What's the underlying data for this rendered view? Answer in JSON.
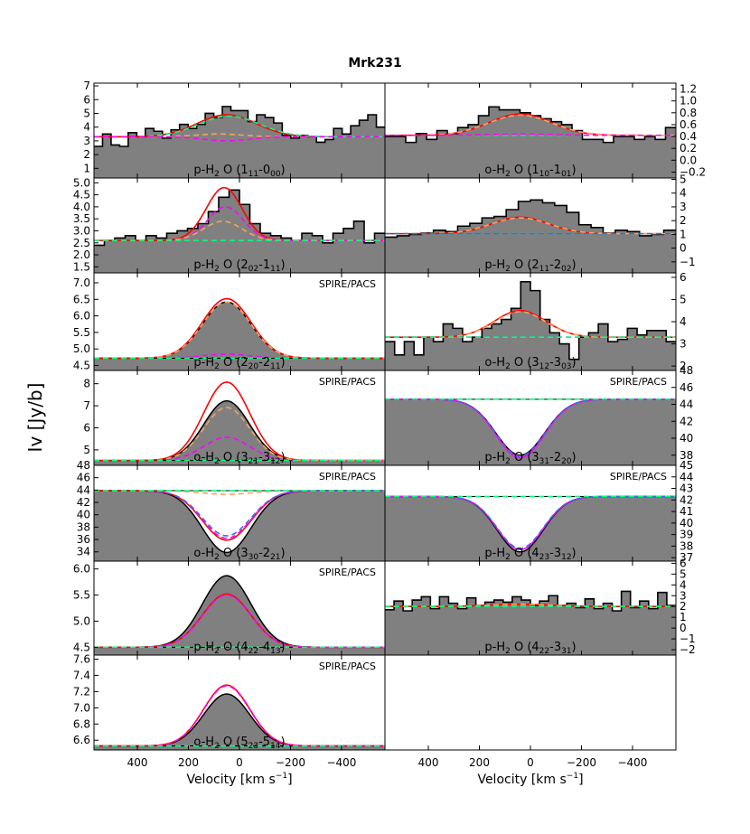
{
  "figure": {
    "title": "Mrk231",
    "ylabel": "Iv [Jy/b]",
    "xlabel": "Velocity [km s$^{-1}$]",
    "xlabel_plain": "Velocity [km s",
    "xlabel_sup": "−1",
    "xlabel_close": "]",
    "xlim": [
      570,
      -570
    ],
    "xticks": [
      400,
      200,
      0,
      -200,
      -400
    ],
    "xtick_labels": [
      "400",
      "200",
      "0",
      "−200",
      "−400"
    ]
  },
  "colors": {
    "fill": "#808080",
    "total": "#ff0000",
    "magenta": "#ff00ff",
    "orange": "#f4a460",
    "cyan": "#00ff7f",
    "blue": "#4169e1",
    "black": "#000000"
  },
  "chart_data": [
    {
      "type": "histogram-line",
      "label": "p-H$_2$O (1$_{11}$-0$_{00}$)",
      "label_parts": [
        "p-H",
        "2",
        " O (1",
        "11",
        "-0",
        "00",
        ")"
      ],
      "axis_side": "left",
      "ylim": [
        0.3,
        7.2
      ],
      "yticks": [
        1,
        2,
        3,
        4,
        5,
        6,
        7
      ],
      "observed": [
        2.6,
        3.5,
        2.7,
        2.6,
        3.6,
        3.3,
        3.9,
        3.7,
        3.2,
        3.8,
        4.2,
        3.9,
        4.2,
        5.0,
        4.7,
        5.5,
        5.2,
        5.2,
        4.4,
        4.9,
        4.7,
        4.3,
        3.4,
        3.2,
        3.4,
        3.3,
        2.9,
        3.1,
        3.9,
        3.5,
        4.1,
        4.5,
        4.9,
        4.0
      ],
      "continuum": 3.3,
      "components": [
        {
          "color": "total",
          "dash": false,
          "amp": 1.6,
          "center": 50,
          "sigma": 115
        },
        {
          "color": "cyan",
          "dash": true,
          "amp": 1.5,
          "center": 40,
          "sigma": 120
        },
        {
          "color": "orange",
          "dash": true,
          "amp": 0.2,
          "center": 80,
          "sigma": 90
        },
        {
          "color": "magenta",
          "dash": true,
          "amp": -0.3,
          "center": 50,
          "sigma": 90
        }
      ]
    },
    {
      "type": "histogram-line",
      "label": "o-H$_2$O (1$_{10}$-1$_{01}$)",
      "label_parts": [
        "o-H",
        "2",
        " O (1",
        "10",
        "-1",
        "01",
        ")"
      ],
      "axis_side": "right",
      "ylim": [
        -0.3,
        1.3
      ],
      "yticks": [
        -0.2,
        0.0,
        0.2,
        0.4,
        0.6,
        0.8,
        1.0,
        1.2
      ],
      "ytick_labels": [
        "−0.2",
        "0.0",
        "0.2",
        "0.4",
        "0.6",
        "0.8",
        "1.0",
        "1.2"
      ],
      "observed": [
        0.4,
        0.4,
        0.3,
        0.45,
        0.35,
        0.5,
        0.45,
        0.55,
        0.6,
        0.75,
        0.9,
        0.85,
        0.85,
        0.8,
        0.75,
        0.7,
        0.65,
        0.6,
        0.5,
        0.35,
        0.35,
        0.3,
        0.4,
        0.4,
        0.35,
        0.4,
        0.35,
        0.55
      ],
      "continuum": 0.42,
      "components": [
        {
          "color": "total",
          "dash": false,
          "amp": 0.36,
          "center": 40,
          "sigma": 120
        },
        {
          "color": "orange",
          "dash": true,
          "amp": 0.34,
          "center": 40,
          "sigma": 125
        },
        {
          "color": "cyan",
          "dash": true,
          "amp": 0.0,
          "center": 0,
          "sigma": 100
        },
        {
          "color": "magenta",
          "dash": true,
          "amp": 0.02,
          "center": 40,
          "sigma": 120
        }
      ]
    },
    {
      "type": "histogram-line",
      "label": "p-H$_2$O (2$_{02}$-1$_{11}$)",
      "label_parts": [
        "p-H",
        "2",
        " O (2",
        "02",
        "-1",
        "11",
        ")"
      ],
      "axis_side": "left",
      "ylim": [
        1.25,
        5.2
      ],
      "yticks": [
        1.5,
        2.0,
        2.5,
        3.0,
        3.5,
        4.0,
        4.5,
        5.0
      ],
      "ytick_labels": [
        "1.5",
        "2.0",
        "2.5",
        "3.0",
        "3.5",
        "4.0",
        "4.5",
        "5.0"
      ],
      "observed": [
        2.4,
        2.6,
        2.7,
        2.8,
        2.6,
        2.8,
        2.7,
        2.9,
        3.0,
        3.1,
        3.3,
        3.8,
        4.4,
        4.7,
        4.1,
        3.3,
        2.9,
        2.8,
        2.7,
        2.6,
        2.9,
        2.8,
        2.5,
        2.9,
        3.1,
        3.4,
        2.5,
        2.9
      ],
      "continuum": 2.6,
      "components": [
        {
          "color": "total",
          "dash": false,
          "amp": 2.2,
          "center": 60,
          "sigma": 70
        },
        {
          "color": "magenta",
          "dash": true,
          "amp": 1.4,
          "center": 55,
          "sigma": 70
        },
        {
          "color": "orange",
          "dash": true,
          "amp": 0.8,
          "center": 65,
          "sigma": 75
        },
        {
          "color": "cyan",
          "dash": true,
          "amp": 0.0,
          "center": 0,
          "sigma": 100
        }
      ]
    },
    {
      "type": "histogram-line",
      "label": "p-H$_2$O (2$_{11}$-2$_{02}$)",
      "label_parts": [
        "p-H",
        "2",
        " O (2",
        "11",
        "-2",
        "02",
        ")"
      ],
      "axis_side": "right",
      "ylim": [
        -1.8,
        5.1
      ],
      "yticks": [
        -1,
        0,
        1,
        2,
        3,
        4,
        5
      ],
      "ytick_labels": [
        "−1",
        "0",
        "1",
        "2",
        "3",
        "4",
        "5"
      ],
      "observed": [
        0.8,
        0.9,
        1.0,
        1.1,
        1.3,
        1.2,
        1.6,
        1.8,
        2.2,
        2.3,
        2.8,
        3.4,
        3.5,
        3.3,
        3.1,
        2.6,
        1.7,
        1.5,
        1.1,
        1.3,
        1.2,
        0.9,
        1.0,
        1.3
      ],
      "continuum": 1.05,
      "components": [
        {
          "color": "total",
          "dash": false,
          "amp": 1.2,
          "center": 40,
          "sigma": 110
        },
        {
          "color": "orange",
          "dash": true,
          "amp": 1.15,
          "center": 40,
          "sigma": 115
        },
        {
          "color": "cyan",
          "dash": true,
          "amp": 0.0,
          "center": 0,
          "sigma": 100
        },
        {
          "color": "blue",
          "dash": true,
          "amp": 0.0,
          "center": 0,
          "sigma": 100
        }
      ]
    },
    {
      "type": "gaussian-model",
      "label": "p-H$_2$O (2$_{20}$-2$_{11}$)",
      "label_parts": [
        "p-H",
        "2",
        " O (2",
        "20",
        "-2",
        "11",
        ")"
      ],
      "annotation": "SPIRE/PACS",
      "axis_side": "left",
      "ylim": [
        4.35,
        7.3
      ],
      "yticks": [
        4.5,
        5.0,
        5.5,
        6.0,
        6.5,
        7.0
      ],
      "ytick_labels": [
        "4.5",
        "5.0",
        "5.5",
        "6.0",
        "6.5",
        "7.0"
      ],
      "continuum": 4.72,
      "observed_model": {
        "amp": 1.7,
        "center": 50,
        "sigma": 95
      },
      "components": [
        {
          "color": "total",
          "dash": false,
          "amp": 1.8,
          "center": 50,
          "sigma": 95
        },
        {
          "color": "orange",
          "dash": true,
          "amp": 1.7,
          "center": 50,
          "sigma": 95
        },
        {
          "color": "magenta",
          "dash": true,
          "amp": 0.12,
          "center": 50,
          "sigma": 95
        },
        {
          "color": "cyan",
          "dash": true,
          "amp": 0.0,
          "center": 0,
          "sigma": 100
        }
      ]
    },
    {
      "type": "histogram-line",
      "label": "o-H$_2$O (3$_{12}$-3$_{03}$)",
      "label_parts": [
        "o-H",
        "2",
        " O (3",
        "12",
        "-3",
        "03",
        ")"
      ],
      "axis_side": "right",
      "ylim": [
        1.8,
        6.2
      ],
      "yticks": [
        2,
        3,
        4,
        5,
        6
      ],
      "observed": [
        3.1,
        2.5,
        3.1,
        2.5,
        3.3,
        3.1,
        3.9,
        3.7,
        3.1,
        3.3,
        3.7,
        3.9,
        4.1,
        4.6,
        5.8,
        5.4,
        4.1,
        3.5,
        3.0,
        2.3,
        3.3,
        3.5,
        3.9,
        3.1,
        3.2,
        3.7,
        3.4,
        3.6,
        3.6,
        3.1
      ],
      "continuum": 3.3,
      "components": [
        {
          "color": "total",
          "dash": false,
          "amp": 1.2,
          "center": 40,
          "sigma": 100
        },
        {
          "color": "orange",
          "dash": true,
          "amp": 1.15,
          "center": 40,
          "sigma": 100
        },
        {
          "color": "blue",
          "dash": true,
          "amp": 0.0,
          "center": 0,
          "sigma": 100
        },
        {
          "color": "cyan",
          "dash": true,
          "amp": 0.0,
          "center": 0,
          "sigma": 100
        }
      ]
    },
    {
      "type": "gaussian-model",
      "label": "o-H$_2$O (3$_{21}$-3$_{12}$)",
      "label_parts": [
        "o-H",
        "2",
        " O (3",
        "21",
        "-3",
        "12",
        ")"
      ],
      "annotation": "SPIRE/PACS",
      "axis_side": "left",
      "ylim": [
        4.3,
        8.6
      ],
      "yticks": [
        5,
        6,
        7,
        8
      ],
      "continuum": 4.52,
      "observed_model": {
        "amp": 2.7,
        "center": 50,
        "sigma": 90
      },
      "components": [
        {
          "color": "total",
          "dash": false,
          "amp": 3.55,
          "center": 50,
          "sigma": 90
        },
        {
          "color": "orange",
          "dash": true,
          "amp": 2.4,
          "center": 50,
          "sigma": 90
        },
        {
          "color": "magenta",
          "dash": true,
          "amp": 1.05,
          "center": 50,
          "sigma": 90
        },
        {
          "color": "cyan",
          "dash": true,
          "amp": 0.0,
          "center": 0,
          "sigma": 100
        }
      ]
    },
    {
      "type": "gaussian-model",
      "label": "p-H$_2$O (3$_{31}$-2$_{20}$)",
      "label_parts": [
        "p-H",
        "2",
        " O (3",
        "31",
        "-2",
        "20",
        ")"
      ],
      "annotation": "SPIRE/PACS",
      "axis_side": "right",
      "ylim": [
        36.8,
        48.0
      ],
      "yticks": [
        38,
        40,
        42,
        44,
        46,
        48
      ],
      "continuum": 44.6,
      "observed_model": {
        "amp": -6.6,
        "center": 40,
        "sigma": 95
      },
      "components": [
        {
          "color": "magenta",
          "dash": false,
          "amp": -6.9,
          "center": 40,
          "sigma": 95
        },
        {
          "color": "blue",
          "dash": true,
          "amp": -6.7,
          "center": 40,
          "sigma": 95
        },
        {
          "color": "cyan",
          "dash": true,
          "amp": 0.0,
          "center": 0,
          "sigma": 100
        }
      ]
    },
    {
      "type": "gaussian-model",
      "label": "o-H$_2$O (3$_{30}$-2$_{21}$)",
      "label_parts": [
        "o-H",
        "2",
        " O (3",
        "30",
        "-2",
        "21",
        ")"
      ],
      "annotation": "SPIRE/PACS",
      "axis_side": "left",
      "ylim": [
        32.5,
        48.0
      ],
      "yticks": [
        34,
        36,
        38,
        40,
        42,
        44,
        46,
        48
      ],
      "continuum": 43.9,
      "observed_model": {
        "amp": -10.0,
        "center": 50,
        "sigma": 95
      },
      "components": [
        {
          "color": "total",
          "dash": false,
          "amp": -8.0,
          "center": 50,
          "sigma": 95
        },
        {
          "color": "magenta",
          "dash": true,
          "amp": -7.7,
          "center": 50,
          "sigma": 95
        },
        {
          "color": "blue",
          "dash": true,
          "amp": -7.3,
          "center": 50,
          "sigma": 95
        },
        {
          "color": "orange",
          "dash": true,
          "amp": -0.6,
          "center": 50,
          "sigma": 95
        },
        {
          "color": "cyan",
          "dash": true,
          "amp": 0.0,
          "center": 0,
          "sigma": 100
        }
      ]
    },
    {
      "type": "gaussian-model",
      "label": "p-H$_2$O (4$_{23}$-3$_{12}$)",
      "label_parts": [
        "p-H",
        "2",
        " O (4",
        "23",
        "-3",
        "12",
        ")"
      ],
      "annotation": "SPIRE/PACS",
      "axis_side": "right",
      "ylim": [
        36.7,
        45.0
      ],
      "yticks": [
        37,
        38,
        39,
        40,
        41,
        42,
        43,
        44,
        45
      ],
      "continuum": 42.3,
      "observed_model": {
        "amp": -4.8,
        "center": 40,
        "sigma": 90
      },
      "components": [
        {
          "color": "magenta",
          "dash": false,
          "amp": -4.6,
          "center": 40,
          "sigma": 90
        },
        {
          "color": "blue",
          "dash": true,
          "amp": -4.5,
          "center": 40,
          "sigma": 90
        },
        {
          "color": "cyan",
          "dash": true,
          "amp": 0.0,
          "center": 0,
          "sigma": 100
        }
      ]
    },
    {
      "type": "gaussian-model",
      "label": "p-H$_2$O (4$_{22}$-4$_{13}$)",
      "label_parts": [
        "p-H",
        "2",
        " O (4",
        "22",
        "-4",
        "13",
        ")"
      ],
      "annotation": "SPIRE/PACS",
      "axis_side": "left",
      "ylim": [
        4.35,
        6.15
      ],
      "yticks": [
        4.5,
        5.0,
        5.5,
        6.0
      ],
      "ytick_labels": [
        "4.5",
        "5.0",
        "5.5",
        "6.0"
      ],
      "continuum": 4.5,
      "observed_model": {
        "amp": 1.37,
        "center": 50,
        "sigma": 95
      },
      "components": [
        {
          "color": "total",
          "dash": false,
          "amp": 1.02,
          "center": 50,
          "sigma": 95
        },
        {
          "color": "magenta",
          "dash": true,
          "amp": 1.0,
          "center": 50,
          "sigma": 95
        },
        {
          "color": "cyan",
          "dash": true,
          "amp": 0.0,
          "center": 0,
          "sigma": 100
        }
      ]
    },
    {
      "type": "histogram-line",
      "label": "p-H$_2$O (4$_{22}$-3$_{31}$)",
      "label_parts": [
        "p-H",
        "2",
        " O (4",
        "22",
        "-3",
        "31",
        ")"
      ],
      "axis_side": "right",
      "ylim": [
        -2.5,
        6.2
      ],
      "yticks": [
        -2,
        -1,
        0,
        1,
        2,
        3,
        4,
        5,
        6
      ],
      "ytick_labels": [
        "−2",
        "−1",
        "0",
        "1",
        "2",
        "3",
        "4",
        "5",
        "6"
      ],
      "observed": [
        1.7,
        2.5,
        1.6,
        2.6,
        2.9,
        1.8,
        2.9,
        2.3,
        1.8,
        2.8,
        2.1,
        2.4,
        2.6,
        2.4,
        2.9,
        2.6,
        2.1,
        2.5,
        3.0,
        2.1,
        2.3,
        1.9,
        2.7,
        1.8,
        2.3,
        1.6,
        3.4,
        1.9,
        2.5,
        1.8,
        3.3,
        2.1
      ],
      "continuum": 2.0,
      "components": [
        {
          "color": "total",
          "dash": false,
          "amp": 0.2,
          "center": 40,
          "sigma": 120
        },
        {
          "color": "orange",
          "dash": true,
          "amp": 0.2,
          "center": 40,
          "sigma": 120
        },
        {
          "color": "cyan",
          "dash": true,
          "amp": 0.0,
          "center": 0,
          "sigma": 100
        }
      ]
    },
    {
      "type": "gaussian-model",
      "label": "o-H$_2$O (5$_{23}$-5$_{14}$)",
      "label_parts": [
        "o-H",
        "2",
        " O (5",
        "23",
        "-5",
        "14",
        ")"
      ],
      "annotation": "SPIRE/PACS",
      "axis_side": "left",
      "ylim": [
        6.48,
        7.65
      ],
      "yticks": [
        6.6,
        6.8,
        7.0,
        7.2,
        7.4,
        7.6
      ],
      "ytick_labels": [
        "6.6",
        "6.8",
        "7.0",
        "7.2",
        "7.4",
        "7.6"
      ],
      "continuum": 6.53,
      "observed_model": {
        "amp": 0.64,
        "center": 50,
        "sigma": 90
      },
      "components": [
        {
          "color": "total",
          "dash": false,
          "amp": 0.75,
          "center": 50,
          "sigma": 90
        },
        {
          "color": "magenta",
          "dash": true,
          "amp": 0.74,
          "center": 50,
          "sigma": 90
        },
        {
          "color": "cyan",
          "dash": true,
          "amp": 0.0,
          "center": 0,
          "sigma": 100
        }
      ]
    }
  ]
}
